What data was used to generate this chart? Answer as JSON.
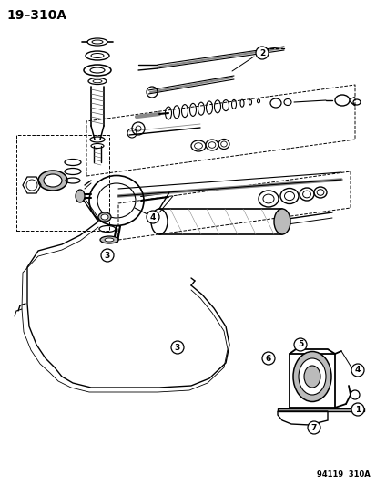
{
  "title": "19–310A",
  "footer": "94119  310A",
  "bg": "#ffffff",
  "lc": "#000000",
  "gray": "#888888",
  "dgray": "#555555",
  "lgray": "#bbbbbb",
  "fig_width": 4.14,
  "fig_height": 5.33,
  "dpi": 100
}
